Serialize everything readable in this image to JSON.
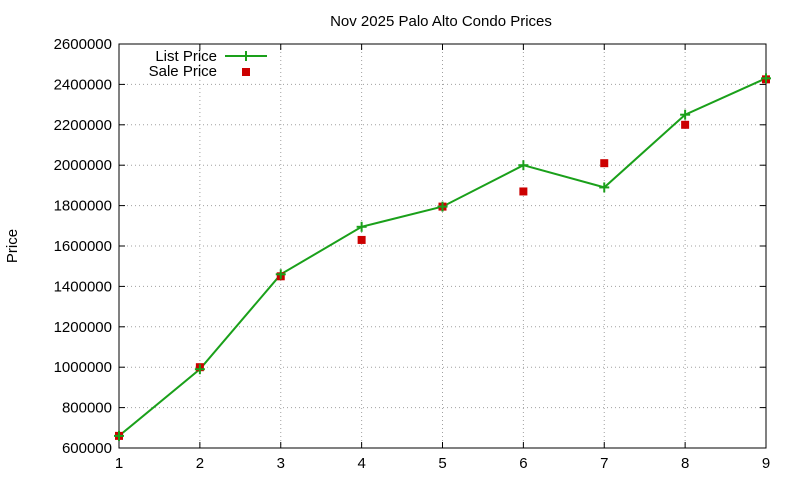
{
  "chart_data": {
    "type": "line",
    "title": "Nov 2025 Palo Alto Condo Prices",
    "xlabel": "",
    "ylabel": "Price",
    "x": [
      1,
      2,
      3,
      4,
      5,
      6,
      7,
      8,
      9
    ],
    "xlim": [
      1,
      9
    ],
    "ylim": [
      600000,
      2600000
    ],
    "x_ticks": [
      "1",
      "2",
      "3",
      "4",
      "5",
      "6",
      "7",
      "8",
      "9"
    ],
    "y_ticks": [
      "600000",
      "800000",
      "1000000",
      "1200000",
      "1400000",
      "1600000",
      "1800000",
      "2000000",
      "2200000",
      "2400000",
      "2600000"
    ],
    "grid": true,
    "legend_position": "top-left",
    "series": [
      {
        "name": "List Price",
        "style": "line-with-plus-markers",
        "color": "#1aa01a",
        "values": [
          660000,
          990000,
          1460000,
          1695000,
          1795000,
          2000000,
          1890000,
          2250000,
          2430000
        ]
      },
      {
        "name": "Sale Price",
        "style": "square-markers",
        "color": "#cc0000",
        "values": [
          660000,
          1000000,
          1450000,
          1630000,
          1795000,
          1870000,
          2010000,
          2200000,
          2425000
        ]
      }
    ]
  }
}
